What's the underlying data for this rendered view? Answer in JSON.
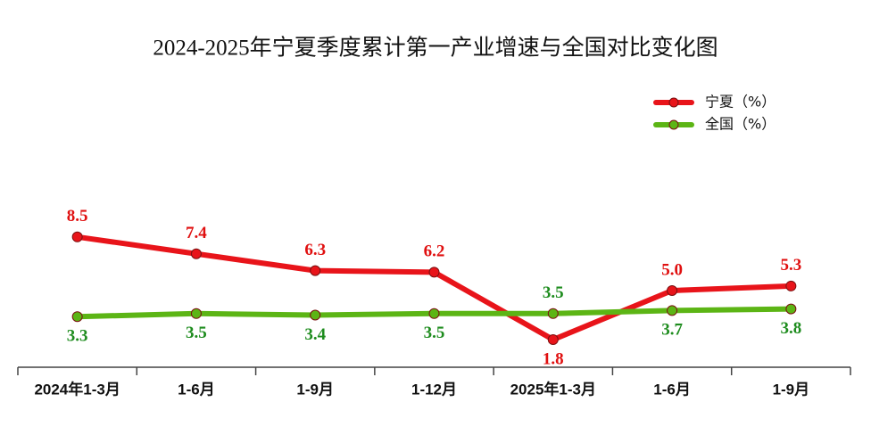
{
  "chart_data": {
    "type": "line",
    "title": "2024-2025年宁夏季度累计第一产业增速与全国对比变化图",
    "categories": [
      "2024年1-3月",
      "1-6月",
      "1-9月",
      "1-12月",
      "2025年1-3月",
      "1-6月",
      "1-9月"
    ],
    "series": [
      {
        "name": "宁夏（%）",
        "color": "#e8141a",
        "label_color": "#e01010",
        "values": [
          8.5,
          7.4,
          6.3,
          6.2,
          1.8,
          5.0,
          5.3
        ],
        "value_labels": [
          "8.5",
          "7.4",
          "6.3",
          "6.2",
          "1.8",
          "5.0",
          "5.3"
        ]
      },
      {
        "name": "全国（%）",
        "color": "#5cb515",
        "label_color": "#1e8c1e",
        "values": [
          3.3,
          3.5,
          3.4,
          3.5,
          3.5,
          3.7,
          3.8
        ],
        "value_labels": [
          "3.3",
          "3.5",
          "3.4",
          "3.5",
          "3.5",
          "3.7",
          "3.8"
        ]
      }
    ],
    "ylim": [
      0,
      10
    ],
    "legend": "top-right"
  }
}
